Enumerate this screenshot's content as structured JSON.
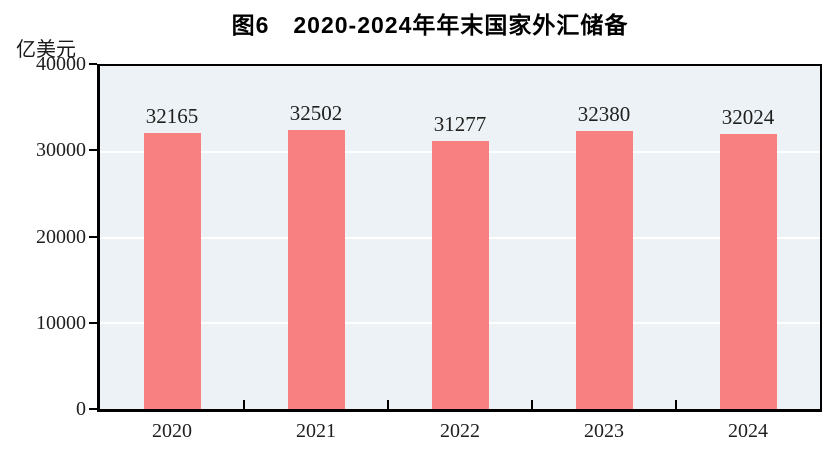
{
  "figure": {
    "title": "图6　2020-2024年年末国家外汇储备",
    "unit_label": "亿美元"
  },
  "chart_data": {
    "type": "bar",
    "title": "图6　2020-2024年年末国家外汇储备",
    "ylabel": "亿美元",
    "xlabel": "",
    "categories": [
      "2020",
      "2021",
      "2022",
      "2023",
      "2024"
    ],
    "values": [
      32165,
      32502,
      31277,
      32380,
      32024
    ],
    "data_labels": [
      32165,
      32502,
      31277,
      32380,
      32024
    ],
    "yticks": [
      0,
      10000,
      20000,
      30000,
      40000
    ],
    "ylim": [
      0,
      40000
    ],
    "legend": "none",
    "grid": "horizontal-white",
    "bar_color": "#f98080",
    "plot_background": "#ecf2f5",
    "grid_color": "#ffffff",
    "axis_color": "#000000",
    "text_color": "#1f1f1f"
  }
}
